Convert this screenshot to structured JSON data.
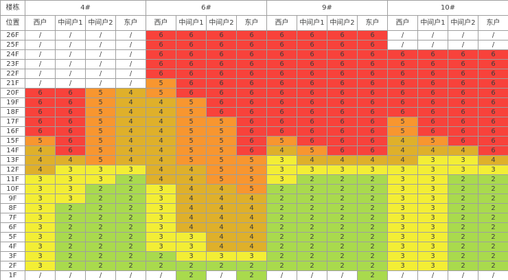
{
  "chart_data": {
    "type": "heatmap",
    "title": "",
    "corner_labels": {
      "building": "楼栋",
      "position": "位置"
    },
    "column_groups": [
      "4#",
      "6#",
      "9#",
      "10#"
    ],
    "subcolumns": [
      "西户",
      "中间户1",
      "中间户2",
      "东户"
    ],
    "row_labels": [
      "26F",
      "25F",
      "24F",
      "23F",
      "22F",
      "21F",
      "20F",
      "19F",
      "18F",
      "17F",
      "16F",
      "15F",
      "14F",
      "13F",
      "12F",
      "11F",
      "10F",
      "9F",
      "8F",
      "7F",
      "6F",
      "5F",
      "4F",
      "3F",
      "2F",
      "1F"
    ],
    "empty_marker": "/",
    "cells": [
      [
        "/",
        "/",
        "/",
        "/",
        "6",
        "6",
        "6",
        "6",
        "6",
        "6",
        "6",
        "6",
        "/",
        "/",
        "/",
        "/"
      ],
      [
        "/",
        "/",
        "/",
        "/",
        "6",
        "6",
        "6",
        "6",
        "6",
        "6",
        "6",
        "6",
        "/",
        "/",
        "/",
        "/"
      ],
      [
        "/",
        "/",
        "/",
        "/",
        "6",
        "6",
        "6",
        "6",
        "6",
        "6",
        "6",
        "6",
        "6",
        "6",
        "6",
        "6"
      ],
      [
        "/",
        "/",
        "/",
        "/",
        "6",
        "6",
        "6",
        "6",
        "6",
        "6",
        "6",
        "6",
        "6",
        "6",
        "6",
        "6"
      ],
      [
        "/",
        "/",
        "/",
        "/",
        "6",
        "6",
        "6",
        "6",
        "6",
        "6",
        "6",
        "6",
        "6",
        "6",
        "6",
        "6"
      ],
      [
        "/",
        "/",
        "/",
        "/",
        "5",
        "6",
        "6",
        "6",
        "6",
        "6",
        "6",
        "6",
        "6",
        "6",
        "6",
        "6"
      ],
      [
        "6",
        "6",
        "5",
        "4",
        "5",
        "6",
        "6",
        "6",
        "6",
        "6",
        "6",
        "6",
        "6",
        "6",
        "6",
        "6"
      ],
      [
        "6",
        "6",
        "5",
        "4",
        "4",
        "5",
        "6",
        "6",
        "6",
        "6",
        "6",
        "6",
        "6",
        "6",
        "6",
        "6"
      ],
      [
        "6",
        "6",
        "5",
        "4",
        "4",
        "5",
        "6",
        "6",
        "6",
        "6",
        "6",
        "6",
        "6",
        "6",
        "6",
        "6"
      ],
      [
        "6",
        "6",
        "5",
        "4",
        "4",
        "5",
        "5",
        "6",
        "6",
        "6",
        "6",
        "6",
        "5",
        "6",
        "6",
        "6"
      ],
      [
        "6",
        "6",
        "5",
        "4",
        "4",
        "5",
        "5",
        "6",
        "6",
        "6",
        "6",
        "6",
        "5",
        "6",
        "6",
        "6"
      ],
      [
        "5",
        "6",
        "5",
        "4",
        "4",
        "5",
        "5",
        "6",
        "5",
        "6",
        "6",
        "6",
        "4",
        "5",
        "6",
        "6"
      ],
      [
        "4",
        "6",
        "5",
        "4",
        "4",
        "5",
        "5",
        "6",
        "4",
        "5",
        "6",
        "6",
        "4",
        "4",
        "4",
        "6"
      ],
      [
        "4",
        "4",
        "5",
        "4",
        "4",
        "5",
        "5",
        "5",
        "3",
        "4",
        "4",
        "4",
        "4",
        "3",
        "3",
        "4"
      ],
      [
        "4",
        "3",
        "3",
        "3",
        "4",
        "4",
        "5",
        "5",
        "3",
        "3",
        "3",
        "3",
        "3",
        "3",
        "3",
        "3"
      ],
      [
        "3",
        "3",
        "3",
        "2",
        "4",
        "4",
        "5",
        "5",
        "3",
        "2",
        "2",
        "2",
        "3",
        "3",
        "2",
        "2"
      ],
      [
        "3",
        "3",
        "2",
        "2",
        "3",
        "4",
        "4",
        "5",
        "2",
        "2",
        "2",
        "2",
        "3",
        "3",
        "2",
        "2"
      ],
      [
        "3",
        "3",
        "2",
        "2",
        "3",
        "4",
        "4",
        "4",
        "2",
        "2",
        "2",
        "2",
        "3",
        "3",
        "2",
        "2"
      ],
      [
        "3",
        "2",
        "2",
        "2",
        "3",
        "4",
        "4",
        "4",
        "2",
        "2",
        "2",
        "2",
        "3",
        "3",
        "2",
        "2"
      ],
      [
        "3",
        "2",
        "2",
        "2",
        "3",
        "4",
        "4",
        "4",
        "2",
        "2",
        "2",
        "2",
        "3",
        "3",
        "2",
        "2"
      ],
      [
        "3",
        "2",
        "2",
        "2",
        "3",
        "4",
        "4",
        "4",
        "2",
        "2",
        "2",
        "2",
        "3",
        "3",
        "2",
        "2"
      ],
      [
        "3",
        "2",
        "2",
        "2",
        "3",
        "3",
        "4",
        "4",
        "2",
        "2",
        "2",
        "2",
        "3",
        "3",
        "2",
        "2"
      ],
      [
        "3",
        "2",
        "2",
        "2",
        "3",
        "3",
        "4",
        "4",
        "2",
        "2",
        "2",
        "2",
        "3",
        "3",
        "2",
        "2"
      ],
      [
        "3",
        "2",
        "2",
        "2",
        "2",
        "3",
        "3",
        "3",
        "2",
        "2",
        "2",
        "2",
        "3",
        "3",
        "2",
        "2"
      ],
      [
        "3",
        "2",
        "2",
        "2",
        "2",
        "2",
        "2",
        "2",
        "2",
        "2",
        "2",
        "2",
        "3",
        "3",
        "2",
        "2"
      ],
      [
        "/",
        "/",
        "/",
        "/",
        "/",
        "2",
        "/",
        "2",
        "/",
        "/",
        "/",
        "2",
        "/",
        "/",
        "/",
        "/"
      ]
    ],
    "value_color_map": {
      "6": "#f8423b",
      "5": "#f8962f",
      "4": "#dfb02a",
      "3": "#f3ee35",
      "2": "#a9da4d",
      "/": "#ffffff"
    },
    "layout_hints": {
      "grid": true,
      "border_color": "#9e9e9e",
      "text_color": "#3d3d3d",
      "value_range": [
        2,
        6
      ]
    }
  }
}
